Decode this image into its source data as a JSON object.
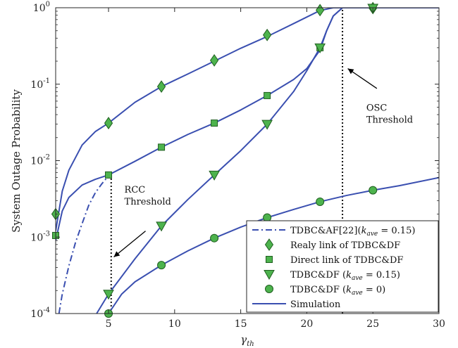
{
  "chart_data": {
    "type": "line",
    "title": "",
    "xlabel": "γ_th",
    "ylabel": "System Outage Probability",
    "xlim": [
      1,
      30
    ],
    "ylim": [
      0.0001,
      1
    ],
    "yscale": "log",
    "x_ticks": [
      5,
      10,
      15,
      20,
      25,
      30
    ],
    "y_ticks": [
      {
        "value": 0.0001,
        "base": "10",
        "exp": "-4"
      },
      {
        "value": 0.001,
        "base": "10",
        "exp": "-3"
      },
      {
        "value": 0.01,
        "base": "10",
        "exp": "-2"
      },
      {
        "value": 0.1,
        "base": "10",
        "exp": "-1"
      },
      {
        "value": 1,
        "base": "10",
        "exp": "0"
      }
    ],
    "grid": false,
    "legend_placement": "bottom-right",
    "colors": {
      "line": "#3a4fb0",
      "marker_fill": "#4db34d",
      "marker_stroke": "#1f5e1f",
      "threshold": "#111111"
    },
    "legend": [
      {
        "label": "TDBC&AF[22](",
        "math": "k",
        "sub": "ave",
        "tail": " = 0.15)",
        "kind": "dashdot"
      },
      {
        "label": "Realy link of TDBC&DF",
        "kind": "diamond"
      },
      {
        "label": "Direct link of TDBC&DF",
        "kind": "square"
      },
      {
        "label": "TDBC&DF (",
        "math": "k",
        "sub": "ave",
        "tail": " = 0.15)",
        "kind": "triangle"
      },
      {
        "label": "TDBC&DF (",
        "math": "k",
        "sub": "ave",
        "tail": " = 0)",
        "kind": "circle"
      },
      {
        "label": "Simulation",
        "kind": "line"
      }
    ],
    "series": [
      {
        "name": "Realy link of TDBC&DF",
        "marker": "diamond",
        "x": [
          1,
          1.5,
          2,
          3,
          4,
          5,
          7,
          9,
          11,
          13,
          15,
          17,
          19,
          21,
          22,
          23,
          25,
          27,
          30
        ],
        "y": [
          0.0012,
          0.004,
          0.0075,
          0.016,
          0.024,
          0.031,
          0.058,
          0.093,
          0.136,
          0.2,
          0.295,
          0.42,
          0.62,
          0.92,
          1.0,
          1.0,
          1.0,
          1.0,
          1.0
        ],
        "marker_x": [
          1,
          5,
          9,
          13,
          17,
          21,
          25
        ],
        "marker_y": [
          0.002,
          0.031,
          0.093,
          0.205,
          0.44,
          0.93,
          0.99
        ]
      },
      {
        "name": "Direct link of TDBC&DF",
        "marker": "square",
        "x": [
          1,
          1.5,
          2,
          3,
          4,
          5,
          7,
          9,
          11,
          13,
          15,
          17,
          19,
          20,
          21,
          21.5,
          22,
          22.7,
          25,
          30
        ],
        "y": [
          0.0009,
          0.0022,
          0.0033,
          0.0048,
          0.0057,
          0.0065,
          0.0098,
          0.015,
          0.022,
          0.031,
          0.046,
          0.071,
          0.115,
          0.16,
          0.28,
          0.5,
          0.78,
          1.0,
          1.0,
          1.0
        ],
        "marker_x": [
          1,
          5,
          9,
          13,
          17,
          21
        ],
        "marker_y": [
          0.00105,
          0.0065,
          0.015,
          0.031,
          0.071,
          0.3
        ]
      },
      {
        "name": "TDBC&AF[22](k_ave = 0.15)",
        "marker": "none",
        "dash": "dashdot",
        "x": [
          1.25,
          1.5,
          2,
          2.5,
          3,
          3.5,
          4,
          4.5,
          5
        ],
        "y": [
          0.0001,
          0.00018,
          0.00042,
          0.00085,
          0.0015,
          0.0026,
          0.0038,
          0.005,
          0.0063
        ]
      },
      {
        "name": "TDBC&DF (k_ave = 0.15)",
        "marker": "triangle",
        "x": [
          4.1,
          5,
          7,
          9,
          11,
          13,
          15,
          17,
          19,
          20,
          21,
          21.5,
          22,
          22.7,
          25,
          30
        ],
        "y": [
          0.0001,
          0.00018,
          0.00052,
          0.0014,
          0.0031,
          0.0065,
          0.0135,
          0.03,
          0.08,
          0.15,
          0.3,
          0.5,
          0.78,
          1.0,
          1.0,
          1.0
        ],
        "marker_x": [
          5,
          9,
          13,
          17,
          21,
          25
        ],
        "marker_y": [
          0.00018,
          0.0014,
          0.0065,
          0.03,
          0.3,
          0.99
        ]
      },
      {
        "name": "TDBC&DF (k_ave = 0)",
        "marker": "circle",
        "x": [
          5,
          6,
          7,
          9,
          11,
          13,
          15,
          17,
          19,
          21,
          23,
          25,
          27,
          30
        ],
        "y": [
          0.0001,
          0.00018,
          0.00026,
          0.00043,
          0.00066,
          0.00097,
          0.00135,
          0.0018,
          0.0023,
          0.0029,
          0.0035,
          0.0041,
          0.0047,
          0.006
        ],
        "marker_x": [
          5,
          9,
          13,
          17,
          21,
          25
        ],
        "marker_y": [
          0.0001,
          0.00043,
          0.00097,
          0.0018,
          0.0029,
          0.0041
        ]
      }
    ],
    "annotations": [
      {
        "name": "rcc-threshold",
        "lines": [
          "RCC",
          "Threshold"
        ],
        "line_x": 5.2,
        "line_y_from": 0.0001,
        "line_y_to": 0.0065,
        "label_x": 6.2,
        "label_y": 0.0038,
        "arrow_tail": [
          7.8,
          0.0012
        ],
        "arrow_head": [
          5.4,
          0.00055
        ]
      },
      {
        "name": "osc-threshold",
        "lines": [
          "OSC",
          "Threshold"
        ],
        "line_x": 22.7,
        "line_y_from": 0.0001,
        "line_y_to": 1.0,
        "label_x": 24.5,
        "label_y": 0.045,
        "arrow_tail": [
          25.3,
          0.088
        ],
        "arrow_head": [
          23.1,
          0.16
        ]
      }
    ]
  }
}
